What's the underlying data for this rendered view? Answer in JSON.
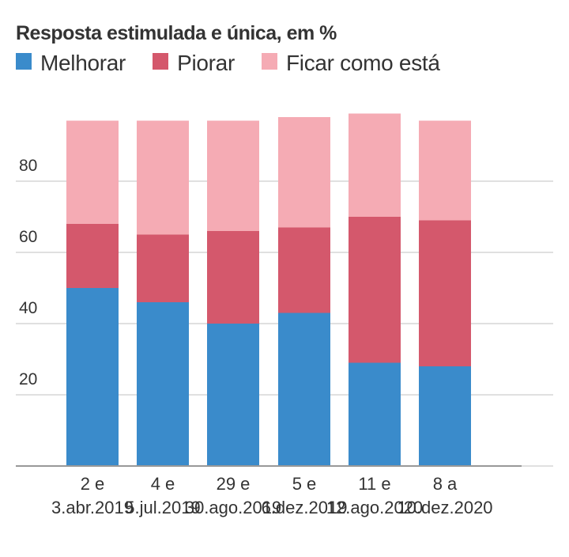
{
  "chart_data": {
    "type": "bar",
    "stacked": true,
    "title": "Resposta estimulada e única, em %",
    "xlabel": "",
    "ylabel": "",
    "ylim": [
      0,
      100
    ],
    "yticks": [
      20,
      40,
      60,
      80
    ],
    "grid": true,
    "legend_position": "top-left",
    "categories": [
      [
        "2 e",
        "3.abr.2019"
      ],
      [
        "4 e",
        "5.jul.2019"
      ],
      [
        "29 e",
        "30.ago.2019"
      ],
      [
        "5 e",
        "6.dez.2019"
      ],
      [
        "11 e",
        "12.ago.2020"
      ],
      [
        "8 a",
        "10.dez.2020"
      ]
    ],
    "series": [
      {
        "name": "Melhorar",
        "color": "#3a8bcb",
        "values": [
          50,
          46,
          40,
          43,
          29,
          28
        ]
      },
      {
        "name": "Piorar",
        "color": "#d4586c",
        "values": [
          18,
          19,
          26,
          24,
          41,
          41
        ]
      },
      {
        "name": "Ficar como está",
        "color": "#f5abb4",
        "values": [
          29,
          32,
          31,
          31,
          29,
          28
        ]
      }
    ]
  },
  "colors": {
    "text": "#333333",
    "grid": "#e0e0e0",
    "baseline": "#999999"
  }
}
